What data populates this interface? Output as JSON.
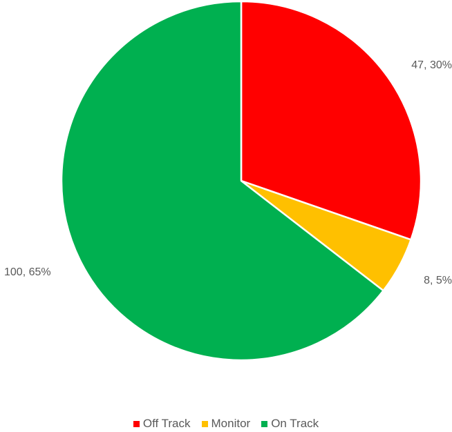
{
  "chart_data": {
    "type": "pie",
    "series": [
      {
        "name": "Off Track",
        "value": 47,
        "label": "47, 30%",
        "color": "#FF0000"
      },
      {
        "name": "Monitor",
        "value": 8,
        "label": "8, 5%",
        "color": "#FFC000"
      },
      {
        "name": "On Track",
        "value": 100,
        "label": "100, 65%",
        "color": "#00B050"
      }
    ],
    "start_angle": "12 o'clock",
    "direction": "clockwise",
    "legend_position": "bottom"
  }
}
